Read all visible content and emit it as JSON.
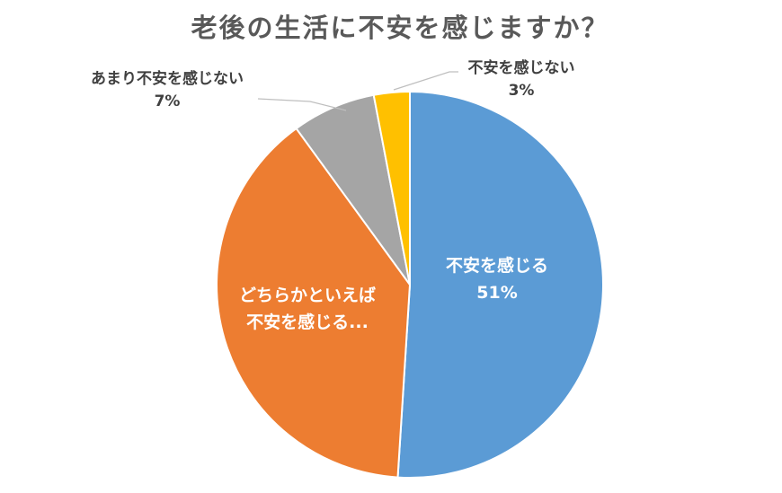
{
  "chart_data": {
    "type": "pie",
    "title": "老後の生活に不安を感じますか？",
    "slices": [
      {
        "label": "不安を感じる",
        "display_label": "不安を感じる",
        "value": 51,
        "value_label": "51%",
        "color": "#5B9BD5"
      },
      {
        "label": "どちらかといえば不安を感じる",
        "display_label": "どちらかといえば不安を感じる...",
        "value": 39,
        "value_label": "",
        "color": "#ED7D31"
      },
      {
        "label": "あまり不安を感じない",
        "display_label": "あまり不安を感じない",
        "value": 7,
        "value_label": "7%",
        "color": "#A5A5A5"
      },
      {
        "label": "不安を感じない",
        "display_label": "不安を感じない",
        "value": 3,
        "value_label": "3%",
        "color": "#FFC000"
      }
    ],
    "start_angle_deg": 0,
    "direction": "clockwise",
    "legend": "none"
  },
  "labels": {
    "blue_name": "不安を感じる",
    "blue_pct": "51%",
    "orange_line1": "どちらかといえば",
    "orange_line2": "不安を感じる...",
    "gray_name": "あまり不安を感じない",
    "gray_pct": "7%",
    "gold_name": "不安を感じない",
    "gold_pct": "3%"
  }
}
